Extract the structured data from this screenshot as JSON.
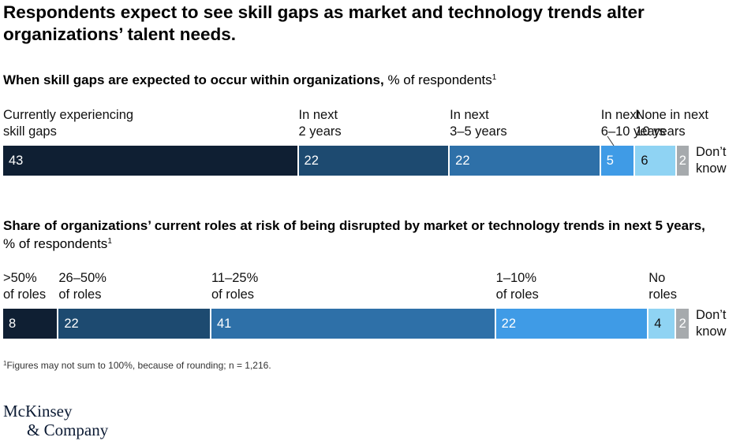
{
  "title": "Respondents expect to see skill gaps as market and technology trends alter organizations’ talent needs.",
  "colors": {
    "c1": "#0f1f33",
    "c2": "#1d4a70",
    "c3": "#2e70a8",
    "c4": "#3f9be6",
    "c5": "#8fd3f3",
    "c6": "#a6aaad"
  },
  "chart_data": [
    {
      "type": "bar",
      "orientation": "horizontal-stacked",
      "title_bold": "When skill gaps are expected to occur within organizations,",
      "title_rest": " % of respondents",
      "title_sup": "1",
      "categories": [
        "Currently experiencing\nskill gaps",
        "In next\n2 years",
        "In next\n3–5 years",
        "In next\n6–10 years",
        "None in next\n10 years",
        "Don’t\nknow"
      ],
      "values": [
        43,
        22,
        22,
        5,
        6,
        2
      ]
    },
    {
      "type": "bar",
      "orientation": "horizontal-stacked",
      "title_bold": "Share of organizations’ current roles at risk of being disrupted by market or technology trends in next 5 years,",
      "title_rest": " % of respondents",
      "title_sup": "1",
      "categories": [
        ">50%\nof roles",
        "26–50%\nof roles",
        "11–25%\nof roles",
        "1–10%\nof roles",
        "No\nroles",
        "Don’t\nknow"
      ],
      "values": [
        8,
        22,
        41,
        22,
        4,
        2
      ]
    }
  ],
  "footnote": {
    "sup": "1",
    "text": "Figures may not sum to 100%, because of rounding; n = 1,216."
  },
  "logo": {
    "line1": "McKinsey",
    "line2": "& Company"
  }
}
